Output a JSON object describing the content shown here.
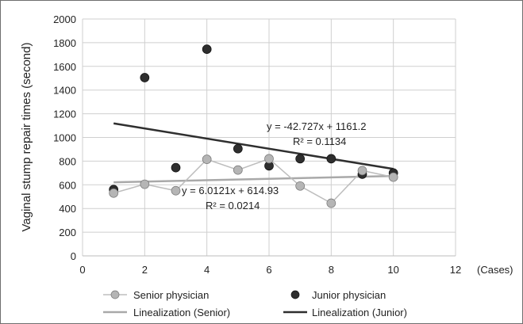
{
  "chart_data": {
    "type": "scatter",
    "title": "",
    "ylabel": "Vaginal stump repair times (second)",
    "xlabel": "(Cases)",
    "xlim": [
      0,
      12
    ],
    "ylim": [
      0,
      2000
    ],
    "x_ticks": [
      0,
      2,
      4,
      6,
      8,
      10,
      12
    ],
    "y_ticks": [
      0,
      200,
      400,
      600,
      800,
      1000,
      1200,
      1400,
      1600,
      1800,
      2000
    ],
    "grid": "horizontal and vertical",
    "legend_position": "bottom",
    "colors": {
      "senior_marker": "#b5b5b5",
      "senior_line": "#bdbdbd",
      "junior_marker": "#2e2e2e",
      "senior_trend": "#a9a9a9",
      "junior_trend": "#2f2f2f",
      "grid": "#cfcfcf"
    },
    "series": [
      {
        "name": "Senior physician",
        "x": [
          1,
          2,
          3,
          4,
          5,
          6,
          7,
          8,
          9,
          10
        ],
        "y": [
          530,
          605,
          550,
          815,
          725,
          820,
          590,
          445,
          720,
          665
        ]
      },
      {
        "name": "Junior physician",
        "x": [
          1,
          2,
          3,
          4,
          5,
          6,
          7,
          8,
          9,
          10
        ],
        "y": [
          560,
          1505,
          745,
          1745,
          905,
          760,
          820,
          820,
          690,
          700
        ]
      }
    ],
    "trendlines": [
      {
        "name": "Linealization (Senior)",
        "slope": 6.0121,
        "intercept": 614.93,
        "x_range": [
          1,
          10
        ],
        "equation": "y = 6.0121x + 614.93",
        "r2": "R² = 0.0214"
      },
      {
        "name": "Linealization (Junior)",
        "slope": -42.727,
        "intercept": 1161.2,
        "x_range": [
          1,
          10
        ],
        "equation": "y = -42.727x + 1161.2",
        "r2": "R² = 0.1134"
      }
    ]
  }
}
